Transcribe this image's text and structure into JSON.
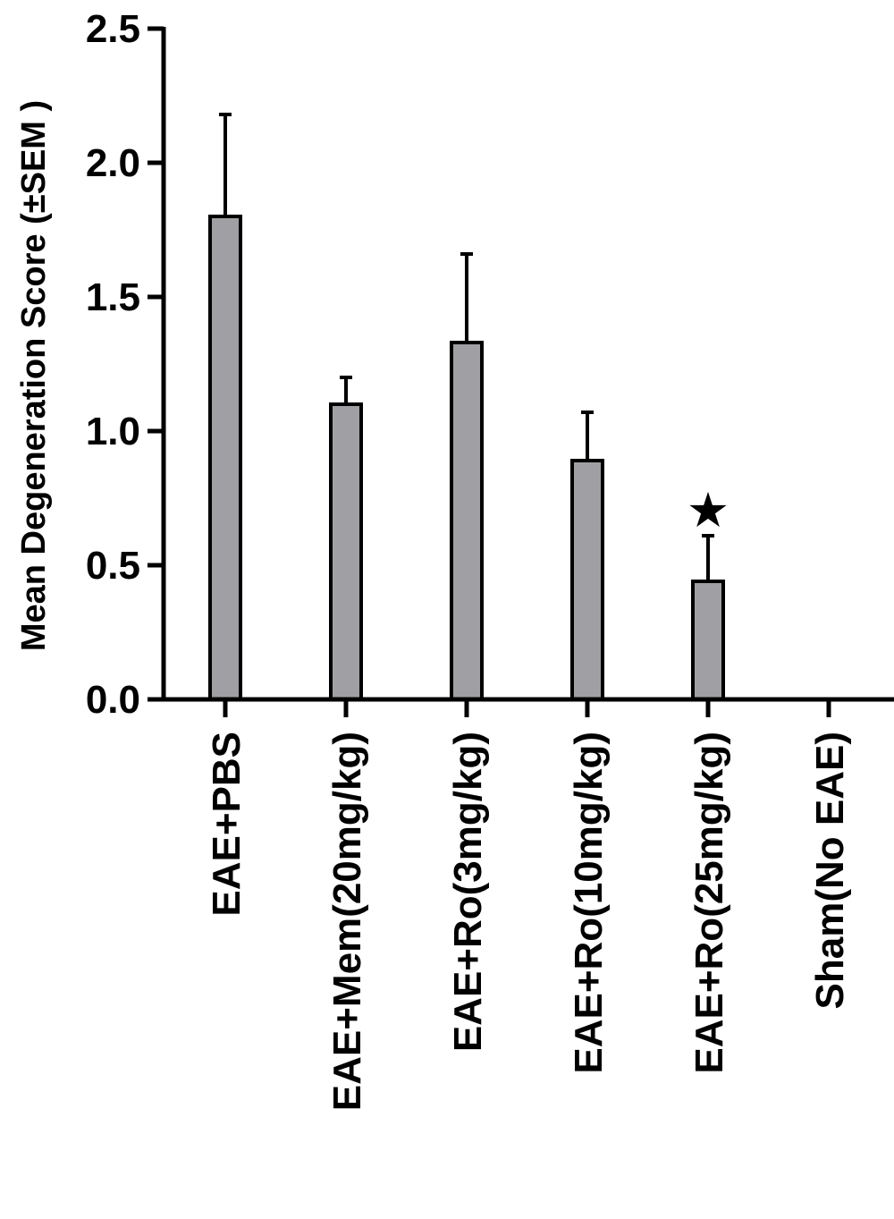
{
  "chart_data": {
    "type": "bar",
    "y_label": "Mean Degeneration Score (±SEM )",
    "categories": [
      "EAE+PBS",
      "EAE+Mem(20mg/kg)",
      "EAE+Ro(3mg/kg)",
      "EAE+Ro(10mg/kg)",
      "EAE+Ro(25mg/kg)",
      "Sham(No EAE)"
    ],
    "values": [
      1.8,
      1.1,
      1.33,
      0.89,
      0.44,
      0
    ],
    "errors": [
      0.38,
      0.1,
      0.33,
      0.18,
      0.17,
      0
    ],
    "significance_labels": [
      null,
      null,
      null,
      null,
      "★",
      null
    ],
    "color": "#a0a0a4",
    "ylim": [
      0,
      2.5
    ],
    "yticks": [
      {
        "value": 0,
        "label": "0.0"
      },
      {
        "value": 0.5,
        "label": "0.5"
      },
      {
        "value": 1,
        "label": "1.0"
      },
      {
        "value": 1.5,
        "label": "1.5"
      },
      {
        "value": 2,
        "label": "2.0"
      },
      {
        "value": 2.5,
        "label": "2.5"
      }
    ],
    "grid": false
  }
}
